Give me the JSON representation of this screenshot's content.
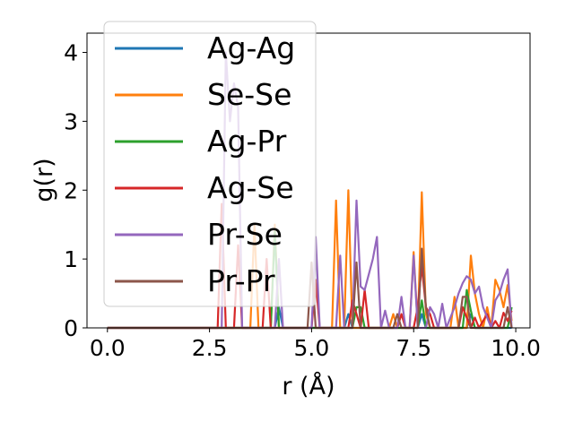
{
  "chart_data": {
    "type": "line",
    "xlabel": "r (Å)",
    "ylabel": "g(r)",
    "xlim": [
      -0.5,
      10.35
    ],
    "ylim": [
      0,
      4.28
    ],
    "xticks": [
      0.0,
      2.5,
      5.0,
      7.5,
      10.0
    ],
    "xtick_labels": [
      "0.0",
      "2.5",
      "5.0",
      "7.5",
      "10.0"
    ],
    "yticks": [
      0,
      1,
      2,
      3,
      4
    ],
    "ytick_labels": [
      "0",
      "1",
      "2",
      "3",
      "4"
    ],
    "grid": false,
    "legend_position": "top-left",
    "series": [
      {
        "name": "Ag-Ag",
        "color": "#1f77b4",
        "points": [
          [
            0,
            0
          ],
          [
            4.1,
            0
          ],
          [
            4.2,
            0.3
          ],
          [
            4.3,
            0
          ],
          [
            5.8,
            0
          ],
          [
            5.9,
            0.2
          ],
          [
            6.0,
            0
          ],
          [
            7.6,
            0
          ],
          [
            7.7,
            0.2
          ],
          [
            7.8,
            0
          ],
          [
            8.8,
            0
          ],
          [
            8.9,
            0.2
          ],
          [
            9.0,
            0
          ],
          [
            9.9,
            0
          ]
        ]
      },
      {
        "name": "Se-Se",
        "color": "#ff7f0e",
        "points": [
          [
            0,
            0
          ],
          [
            3.5,
            0
          ],
          [
            3.6,
            1.5
          ],
          [
            3.7,
            0
          ],
          [
            4.0,
            0
          ],
          [
            4.1,
            1.5
          ],
          [
            4.2,
            0
          ],
          [
            5.5,
            0
          ],
          [
            5.6,
            1.85
          ],
          [
            5.7,
            0
          ],
          [
            5.8,
            0
          ],
          [
            5.9,
            2.0
          ],
          [
            6.0,
            0
          ],
          [
            6.9,
            0
          ],
          [
            7.0,
            0.2
          ],
          [
            7.1,
            0
          ],
          [
            7.4,
            0
          ],
          [
            7.5,
            1.1
          ],
          [
            7.6,
            0
          ],
          [
            7.7,
            1.97
          ],
          [
            7.8,
            0.2
          ],
          [
            7.9,
            0
          ],
          [
            8.4,
            0
          ],
          [
            8.5,
            0.45
          ],
          [
            8.6,
            0
          ],
          [
            8.8,
            0
          ],
          [
            8.9,
            1.05
          ],
          [
            9.0,
            0.5
          ],
          [
            9.1,
            0.2
          ],
          [
            9.2,
            0
          ],
          [
            9.3,
            0.3
          ],
          [
            9.4,
            0
          ],
          [
            9.5,
            0.7
          ],
          [
            9.6,
            0.55
          ],
          [
            9.7,
            0.3
          ],
          [
            9.8,
            0.62
          ],
          [
            9.9,
            0.1
          ]
        ]
      },
      {
        "name": "Ag-Pr",
        "color": "#2ca02c",
        "points": [
          [
            0,
            0
          ],
          [
            4.0,
            0
          ],
          [
            4.1,
            1.4
          ],
          [
            4.2,
            0
          ],
          [
            6.0,
            0
          ],
          [
            6.1,
            0.3
          ],
          [
            6.2,
            0.3
          ],
          [
            6.3,
            0
          ],
          [
            7.6,
            0
          ],
          [
            7.7,
            0.4
          ],
          [
            7.8,
            0
          ],
          [
            8.7,
            0
          ],
          [
            8.8,
            0.55
          ],
          [
            8.9,
            0.25
          ],
          [
            9.0,
            0
          ],
          [
            9.8,
            0
          ],
          [
            9.9,
            0.3
          ]
        ]
      },
      {
        "name": "Ag-Se",
        "color": "#d62728",
        "points": [
          [
            0,
            0
          ],
          [
            2.7,
            0
          ],
          [
            2.8,
            1.8
          ],
          [
            2.9,
            0
          ],
          [
            3.1,
            0
          ],
          [
            3.2,
            1.2
          ],
          [
            3.3,
            0
          ],
          [
            3.8,
            0
          ],
          [
            3.9,
            1.0
          ],
          [
            4.0,
            0
          ],
          [
            5.0,
            0
          ],
          [
            5.1,
            0.7
          ],
          [
            5.2,
            0
          ],
          [
            5.9,
            0
          ],
          [
            6.0,
            0.4
          ],
          [
            6.1,
            0.2
          ],
          [
            6.2,
            0
          ],
          [
            6.3,
            0.55
          ],
          [
            6.4,
            0
          ],
          [
            7.1,
            0
          ],
          [
            7.2,
            0.2
          ],
          [
            7.3,
            0
          ],
          [
            7.5,
            0
          ],
          [
            7.6,
            0.3
          ],
          [
            7.7,
            0.9
          ],
          [
            7.8,
            0.3
          ],
          [
            7.9,
            0.2
          ],
          [
            8.0,
            0
          ],
          [
            8.6,
            0
          ],
          [
            8.7,
            0.3
          ],
          [
            8.8,
            0.15
          ],
          [
            8.9,
            0
          ],
          [
            9.0,
            0.15
          ],
          [
            9.1,
            0
          ],
          [
            9.2,
            0.1
          ],
          [
            9.3,
            0.2
          ],
          [
            9.4,
            0
          ],
          [
            9.5,
            0.1
          ],
          [
            9.6,
            0
          ],
          [
            9.7,
            0.22
          ],
          [
            9.8,
            0.1
          ],
          [
            9.9,
            0.25
          ]
        ]
      },
      {
        "name": "Pr-Se",
        "color": "#9467bd",
        "points": [
          [
            0,
            0
          ],
          [
            2.8,
            0
          ],
          [
            2.9,
            4.0
          ],
          [
            3.0,
            3.0
          ],
          [
            3.1,
            3.55
          ],
          [
            3.2,
            3.2
          ],
          [
            3.3,
            0
          ],
          [
            4.1,
            0
          ],
          [
            4.2,
            1.0
          ],
          [
            4.3,
            0
          ],
          [
            5.0,
            0
          ],
          [
            5.1,
            1.32
          ],
          [
            5.2,
            0
          ],
          [
            5.6,
            0
          ],
          [
            5.7,
            1.05
          ],
          [
            5.8,
            0
          ],
          [
            6.0,
            0
          ],
          [
            6.1,
            1.85
          ],
          [
            6.2,
            0.6
          ],
          [
            6.3,
            0.55
          ],
          [
            6.5,
            1.0
          ],
          [
            6.6,
            1.32
          ],
          [
            6.7,
            0
          ],
          [
            6.8,
            0.25
          ],
          [
            6.9,
            0
          ],
          [
            7.1,
            0
          ],
          [
            7.2,
            0.45
          ],
          [
            7.3,
            0
          ],
          [
            7.4,
            0
          ],
          [
            7.5,
            1.05
          ],
          [
            7.6,
            0
          ],
          [
            7.8,
            0
          ],
          [
            7.9,
            0.3
          ],
          [
            8.0,
            0.2
          ],
          [
            8.1,
            0
          ],
          [
            8.2,
            0.35
          ],
          [
            8.3,
            0
          ],
          [
            8.5,
            0.3
          ],
          [
            8.6,
            0.5
          ],
          [
            8.7,
            0.65
          ],
          [
            8.8,
            0.75
          ],
          [
            8.9,
            0.7
          ],
          [
            9.0,
            0.5
          ],
          [
            9.1,
            0.6
          ],
          [
            9.2,
            0.3
          ],
          [
            9.3,
            0.15
          ],
          [
            9.4,
            0
          ],
          [
            9.5,
            0.4
          ],
          [
            9.6,
            0.5
          ],
          [
            9.7,
            0.7
          ],
          [
            9.8,
            0.85
          ],
          [
            9.9,
            0
          ]
        ]
      },
      {
        "name": "Pr-Pr",
        "color": "#8c564b",
        "points": [
          [
            0,
            0
          ],
          [
            4.9,
            0
          ],
          [
            5.0,
            0.95
          ],
          [
            5.1,
            0
          ],
          [
            6.0,
            0
          ],
          [
            6.1,
            0.95
          ],
          [
            6.2,
            0
          ],
          [
            7.0,
            0
          ],
          [
            7.1,
            0.2
          ],
          [
            7.2,
            0
          ],
          [
            7.6,
            0
          ],
          [
            7.7,
            1.15
          ],
          [
            7.8,
            0.3
          ],
          [
            7.9,
            0
          ],
          [
            8.6,
            0
          ],
          [
            8.7,
            0.45
          ],
          [
            8.8,
            0.45
          ],
          [
            8.9,
            0
          ],
          [
            9.7,
            0
          ],
          [
            9.8,
            0.3
          ],
          [
            9.9,
            0
          ]
        ]
      }
    ]
  }
}
